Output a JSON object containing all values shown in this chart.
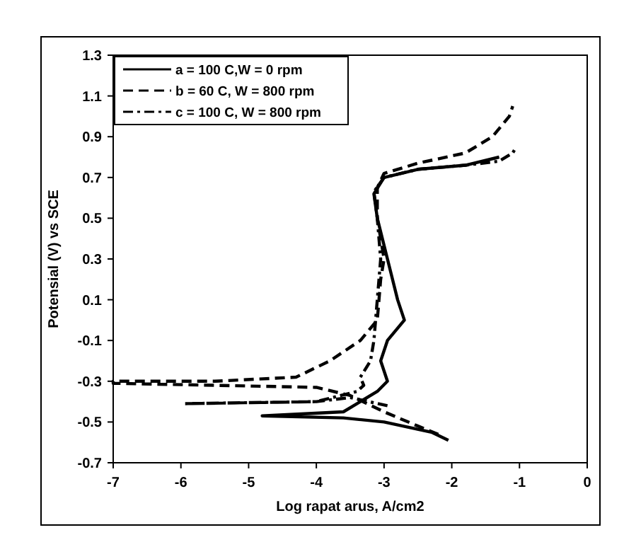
{
  "chart_data": {
    "type": "line",
    "xlabel": "Log rapat arus, A/cm2",
    "ylabel": "Potensial (V) vs SCE",
    "xlim": [
      -7,
      0
    ],
    "ylim": [
      -0.7,
      1.3
    ],
    "xticks": [
      -7,
      -6,
      -5,
      -4,
      -3,
      -2,
      -1,
      0
    ],
    "yticks": [
      -0.7,
      -0.5,
      -0.3,
      -0.1,
      0.1,
      0.3,
      0.5,
      0.7,
      0.9,
      1.1,
      1.3
    ],
    "grid": false,
    "legend": "top left",
    "series": [
      {
        "name": "a = 100 C,W = 0 rpm",
        "color": "#000000",
        "line_style": "solid",
        "x": [
          -2.05,
          -2.3,
          -3.0,
          -3.6,
          -4.8,
          -3.6,
          -3.1,
          -2.95,
          -3.05,
          -2.95,
          -2.7,
          -2.8,
          -2.95,
          -3.1,
          -3.15,
          -3.0,
          -2.5,
          -1.8,
          -1.3
        ],
        "values": [
          -0.59,
          -0.55,
          -0.5,
          -0.48,
          -0.47,
          -0.45,
          -0.35,
          -0.3,
          -0.2,
          -0.1,
          0.0,
          0.1,
          0.3,
          0.5,
          0.62,
          0.7,
          0.74,
          0.76,
          0.8
        ]
      },
      {
        "name": "b = 60 C, W = 800 rpm",
        "color": "#000000",
        "line_style": "dashed",
        "x": [
          -2.2,
          -2.5,
          -3.0,
          -3.5,
          -4.0,
          -5.5,
          -7.0,
          -7.0,
          -5.5,
          -4.3,
          -3.8,
          -3.35,
          -3.1,
          -3.05,
          -3.0,
          -3.1,
          -3.1,
          -3.0,
          -2.5,
          -1.8,
          -1.4,
          -1.15,
          -1.1
        ],
        "values": [
          -0.56,
          -0.52,
          -0.45,
          -0.37,
          -0.33,
          -0.32,
          -0.31,
          -0.3,
          -0.3,
          -0.28,
          -0.2,
          -0.1,
          0.0,
          0.2,
          0.3,
          0.5,
          0.65,
          0.72,
          0.77,
          0.82,
          0.9,
          1.0,
          1.05
        ]
      },
      {
        "name": "c = 100 C, W = 800 rpm",
        "color": "#000000",
        "line_style": "dashdot",
        "x": [
          -2.95,
          -3.5,
          -4.0,
          -5.95,
          -4.0,
          -3.4,
          -3.3,
          -3.35,
          -3.2,
          -3.15,
          -3.1,
          -3.05,
          -3.1,
          -3.15,
          -3.0,
          -2.5,
          -1.8,
          -1.3,
          -1.1,
          -1.05
        ],
        "values": [
          -0.42,
          -0.38,
          -0.4,
          -0.41,
          -0.4,
          -0.35,
          -0.32,
          -0.28,
          -0.2,
          -0.1,
          0.1,
          0.3,
          0.5,
          0.63,
          0.7,
          0.74,
          0.76,
          0.78,
          0.82,
          0.85
        ]
      }
    ]
  }
}
